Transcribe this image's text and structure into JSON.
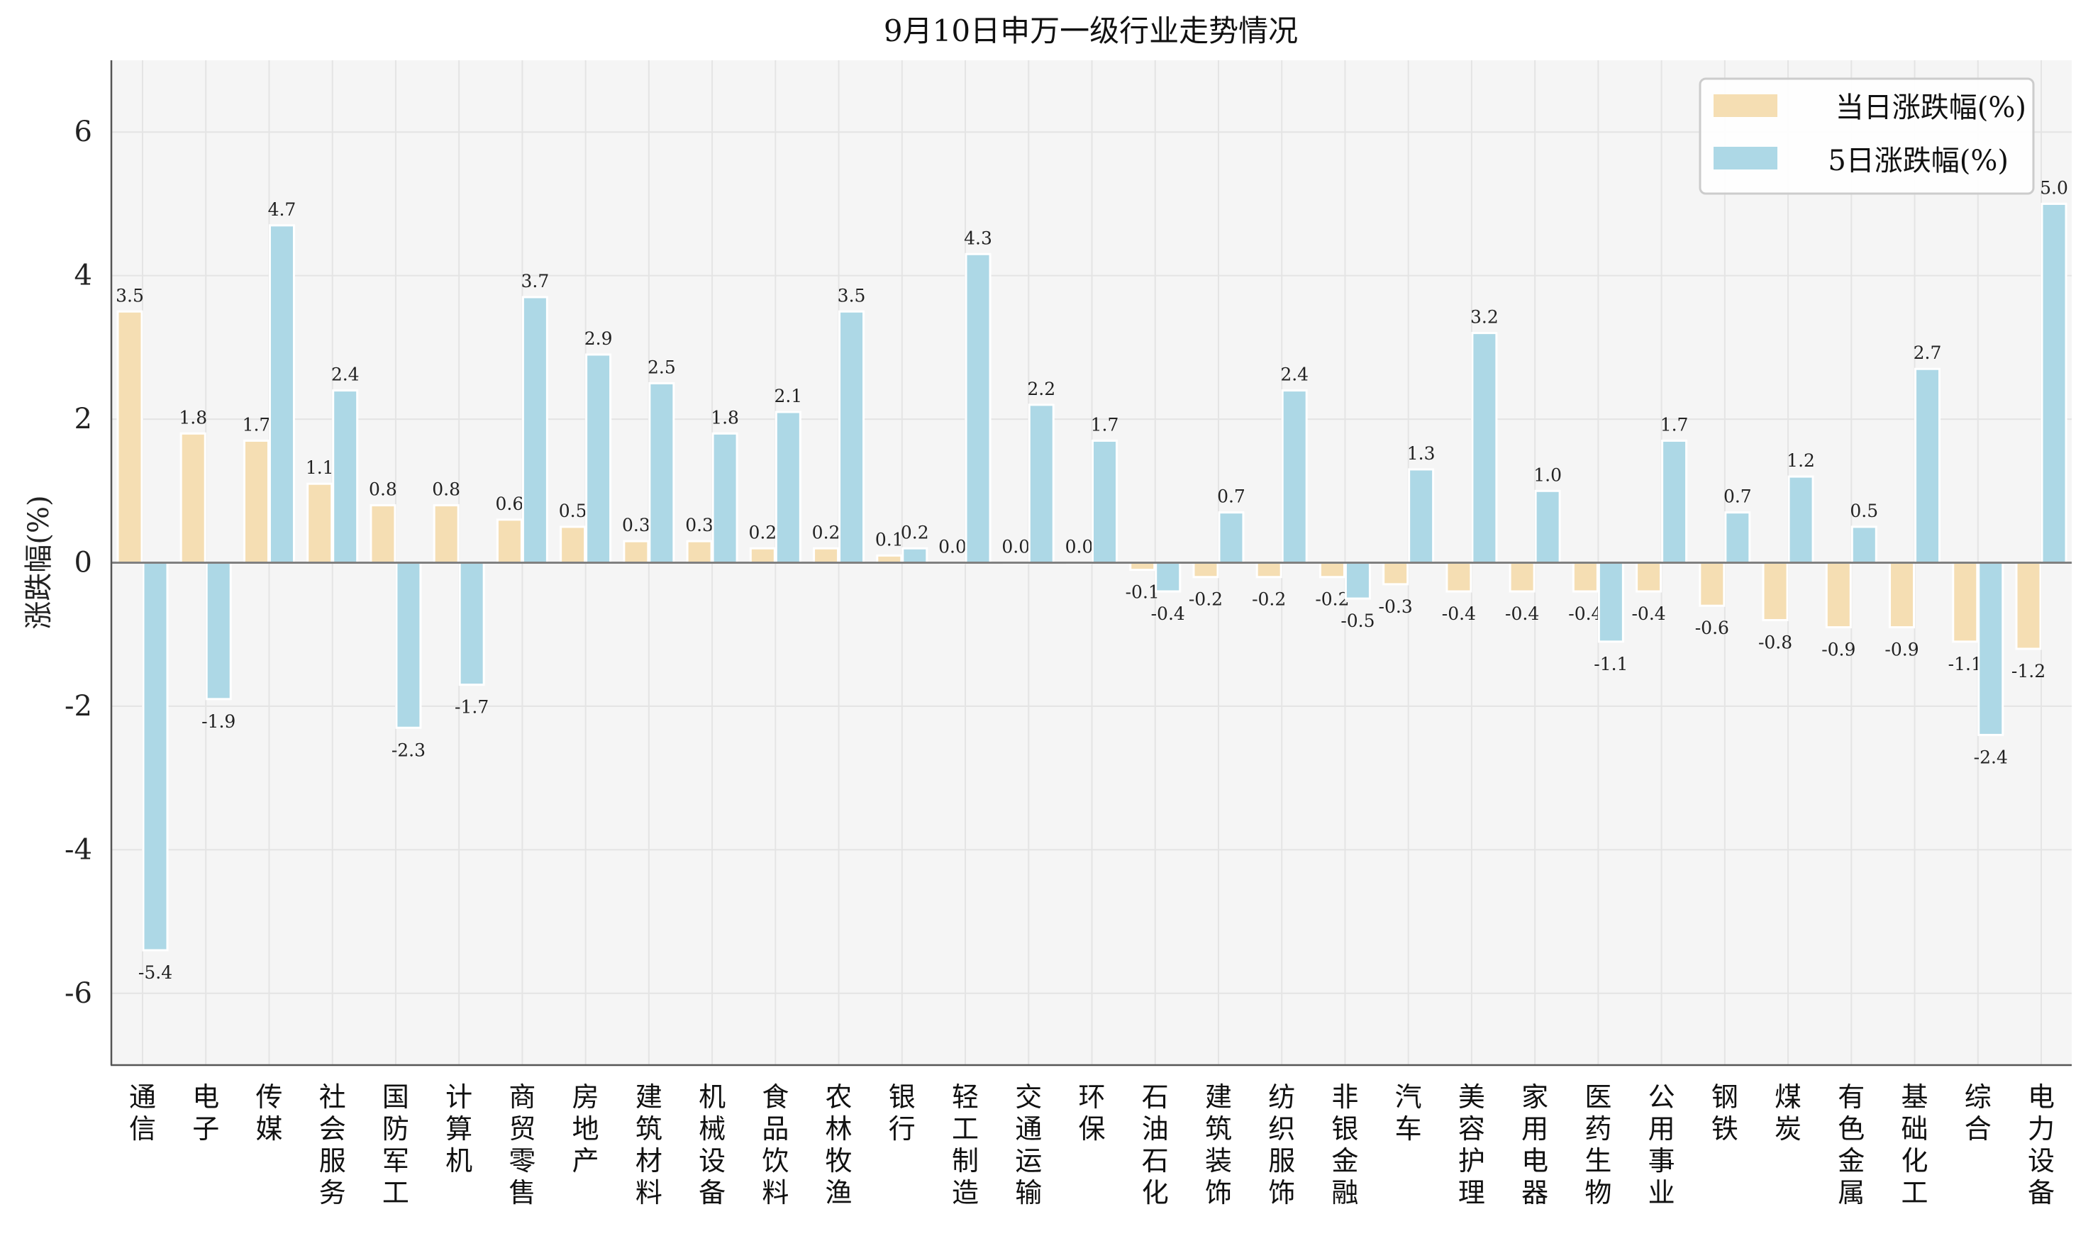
{
  "chart_data": {
    "type": "bar",
    "title": "9月10日申万一级行业走势情况",
    "xlabel": "",
    "ylabel": "涨跌幅(%)",
    "ylim": [
      -7,
      7
    ],
    "yticks": [
      -6,
      -4,
      -2,
      0,
      2,
      4,
      6
    ],
    "grid": true,
    "legend_position": "top-right",
    "categories": [
      "通信",
      "电子",
      "传媒",
      "社会服务",
      "国防军工",
      "计算机",
      "商贸零售",
      "房地产",
      "建筑材料",
      "机械设备",
      "食品饮料",
      "农林牧渔",
      "银行",
      "轻工制造",
      "交通运输",
      "环保",
      "石油石化",
      "建筑装饰",
      "纺织服饰",
      "非银金融",
      "汽车",
      "美容护理",
      "家用电器",
      "医药生物",
      "公用事业",
      "钢铁",
      "煤炭",
      "有色金属",
      "基础化工",
      "综合",
      "电力设备"
    ],
    "series": [
      {
        "name": "当日涨跌幅(%)",
        "color": "#f5deb3",
        "values": [
          3.5,
          1.8,
          1.7,
          1.1,
          0.8,
          0.8,
          0.6,
          0.5,
          0.3,
          0.3,
          0.2,
          0.2,
          0.1,
          0.0,
          0.0,
          0.0,
          -0.1,
          -0.2,
          -0.2,
          -0.2,
          -0.3,
          -0.4,
          -0.4,
          -0.4,
          -0.4,
          -0.6,
          -0.8,
          -0.9,
          -0.9,
          -1.1,
          -1.2
        ]
      },
      {
        "name": "5日涨跌幅(%)",
        "color": "#add8e6",
        "values": [
          -5.4,
          -1.9,
          4.7,
          2.4,
          -2.3,
          -1.7,
          3.7,
          2.9,
          2.5,
          1.8,
          2.1,
          3.5,
          0.2,
          4.3,
          2.2,
          1.7,
          -0.4,
          0.7,
          2.4,
          -0.5,
          1.3,
          3.2,
          1.0,
          -1.1,
          1.7,
          0.7,
          1.2,
          0.5,
          2.7,
          -2.4,
          5.0
        ]
      }
    ]
  }
}
